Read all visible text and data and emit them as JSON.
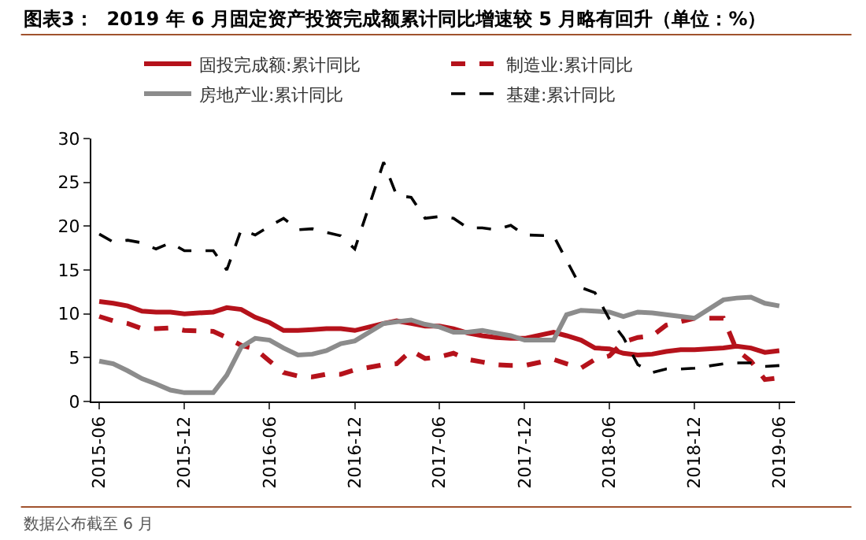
{
  "chart_data": {
    "type": "line",
    "title": "图表3：  2019 年 6 月固定资产投资完成额累计同比增速较 5 月略有回升（单位：%）",
    "annotations": [
      "数据公布截至 6 月"
    ],
    "x": [
      "2015-06",
      "2015-07",
      "2015-08",
      "2015-09",
      "2015-10",
      "2015-11",
      "2015-12",
      "2016-02",
      "2016-03",
      "2016-04",
      "2016-05",
      "2016-06",
      "2016-07",
      "2016-08",
      "2016-09",
      "2016-10",
      "2016-11",
      "2016-12",
      "2017-02",
      "2017-03",
      "2017-04",
      "2017-05",
      "2017-06",
      "2017-07",
      "2017-08",
      "2017-09",
      "2017-10",
      "2017-11",
      "2017-12",
      "2018-02",
      "2018-03",
      "2018-04",
      "2018-05",
      "2018-06",
      "2018-07",
      "2018-08",
      "2018-09",
      "2018-10",
      "2018-11",
      "2018-12",
      "2019-02",
      "2019-03",
      "2019-04",
      "2019-05",
      "2019-06"
    ],
    "series": [
      {
        "name": "固投完成额:累计同比",
        "color": "#b5121b",
        "line_style": "solid",
        "values": [
          11.4,
          11.2,
          10.9,
          10.3,
          10.2,
          10.2,
          10.0,
          10.2,
          10.7,
          10.5,
          9.6,
          9.0,
          8.1,
          8.1,
          8.2,
          8.3,
          8.3,
          8.1,
          8.9,
          9.2,
          8.9,
          8.6,
          8.6,
          8.3,
          7.8,
          7.5,
          7.3,
          7.2,
          7.2,
          7.9,
          7.5,
          7.0,
          6.1,
          6.0,
          5.5,
          5.3,
          5.4,
          5.7,
          5.9,
          5.9,
          6.1,
          6.3,
          6.1,
          5.6,
          5.8
        ]
      },
      {
        "name": "制造业:累计同比",
        "color": "#b5121b",
        "line_style": "dashed",
        "values": [
          9.7,
          9.2,
          8.9,
          8.3,
          8.3,
          8.4,
          8.1,
          8.0,
          7.3,
          6.4,
          6.0,
          4.6,
          3.3,
          2.9,
          2.8,
          3.1,
          3.1,
          3.6,
          4.2,
          4.3,
          5.8,
          4.9,
          5.1,
          5.5,
          4.8,
          4.5,
          4.2,
          4.1,
          4.1,
          4.8,
          4.3,
          3.8,
          4.8,
          5.2,
          6.8,
          7.3,
          7.5,
          8.7,
          9.1,
          9.5,
          9.5,
          5.9,
          4.6,
          2.5,
          2.7
        ]
      },
      {
        "name": "房地产业:累计同比",
        "color": "#8c8c8c",
        "line_style": "solid",
        "values": [
          4.6,
          4.3,
          3.5,
          2.6,
          2.0,
          1.3,
          1.0,
          1.0,
          3.0,
          6.2,
          7.2,
          7.0,
          6.1,
          5.3,
          5.4,
          5.8,
          6.6,
          6.9,
          8.9,
          9.1,
          9.3,
          8.8,
          8.5,
          7.9,
          7.9,
          8.1,
          7.8,
          7.5,
          7.0,
          7.0,
          9.9,
          10.4,
          10.3,
          10.2,
          9.7,
          10.2,
          10.1,
          9.9,
          9.7,
          9.5,
          11.6,
          11.8,
          11.9,
          11.2,
          10.9
        ]
      },
      {
        "name": "基建:累计同比",
        "color": "#000000",
        "line_style": "dashed",
        "values": [
          19.1,
          18.2,
          18.4,
          18.1,
          17.4,
          18.1,
          17.2,
          17.2,
          15.0,
          19.6,
          19.0,
          20.0,
          20.9,
          19.6,
          19.7,
          19.3,
          18.9,
          17.4,
          27.3,
          23.5,
          23.3,
          20.9,
          21.1,
          20.9,
          19.8,
          19.8,
          19.6,
          20.1,
          19.0,
          18.9,
          16.1,
          13.0,
          12.4,
          9.4,
          7.3,
          4.2,
          3.3,
          3.7,
          3.7,
          3.8,
          4.3,
          4.4,
          4.4,
          4.0,
          4.1
        ]
      }
    ],
    "xlim": [
      "2015-05-15",
      "2019-07-05"
    ],
    "xticks": [
      {
        "value": "2015-06",
        "label": "2015-06"
      },
      {
        "value": "2015-12",
        "label": "2015-12"
      },
      {
        "value": "2016-06",
        "label": "2016-06"
      },
      {
        "value": "2016-12",
        "label": "2016-12"
      },
      {
        "value": "2017-06",
        "label": "2017-06"
      },
      {
        "value": "2017-12",
        "label": "2017-12"
      },
      {
        "value": "2018-06",
        "label": "2018-06"
      },
      {
        "value": "2018-12",
        "label": "2018-12"
      },
      {
        "value": "2019-06",
        "label": "2019-06"
      }
    ],
    "ylim": [
      0,
      30
    ],
    "yticks": [
      0,
      5,
      10,
      15,
      20,
      25,
      30
    ],
    "legend": "top",
    "marker": "none"
  }
}
